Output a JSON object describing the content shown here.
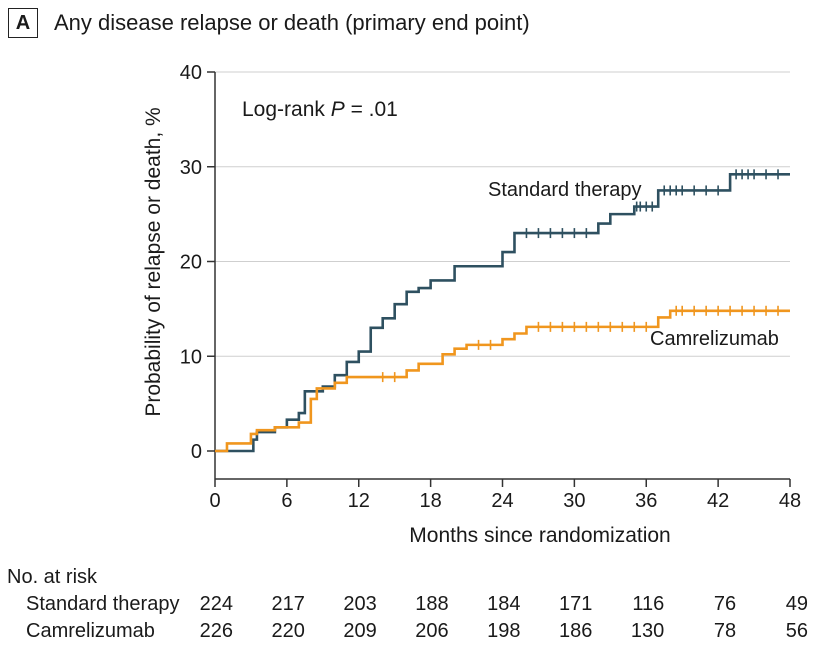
{
  "panel": {
    "letter": "A",
    "title": "Any disease relapse or death (primary end point)"
  },
  "chart_data": {
    "type": "line",
    "subtype": "kaplan-meier",
    "xlabel": "Months since randomization",
    "ylabel": "Probability of relapse or death, %",
    "xlim": [
      0,
      48
    ],
    "ylim": [
      0,
      40
    ],
    "xticks": [
      0,
      6,
      12,
      18,
      24,
      30,
      36,
      42,
      48
    ],
    "yticks": [
      0,
      10,
      20,
      30,
      40
    ],
    "grid": "horizontal",
    "annotation": {
      "prefix": "Log-rank ",
      "p_label": "P",
      "suffix": " = .01"
    },
    "series": [
      {
        "name": "Standard therapy",
        "color": "#2e5060",
        "points": [
          [
            0,
            0
          ],
          [
            3,
            0
          ],
          [
            3.2,
            1.2
          ],
          [
            3.5,
            2
          ],
          [
            5,
            2.5
          ],
          [
            6,
            3.3
          ],
          [
            7,
            4
          ],
          [
            7.5,
            6.3
          ],
          [
            9,
            6.8
          ],
          [
            10,
            8
          ],
          [
            11,
            9.4
          ],
          [
            12,
            10.5
          ],
          [
            13,
            13
          ],
          [
            14,
            14
          ],
          [
            15,
            15.5
          ],
          [
            16,
            16.8
          ],
          [
            17,
            17.2
          ],
          [
            18,
            18
          ],
          [
            20,
            19.5
          ],
          [
            24,
            21
          ],
          [
            25,
            23
          ],
          [
            32,
            24
          ],
          [
            33,
            25
          ],
          [
            35,
            25.8
          ],
          [
            37,
            27.5
          ],
          [
            43,
            29.2
          ],
          [
            48,
            29.2
          ]
        ],
        "censor_x": [
          26,
          27,
          28,
          29,
          30,
          31,
          35.2,
          35.5,
          36,
          36.5,
          37.5,
          38,
          38.5,
          39,
          40,
          41,
          42,
          43.5,
          44,
          44.5,
          45,
          46,
          47
        ]
      },
      {
        "name": "Camrelizumab",
        "color": "#f0961e",
        "points": [
          [
            0,
            0
          ],
          [
            1,
            0.8
          ],
          [
            3,
            1.8
          ],
          [
            3.5,
            2.2
          ],
          [
            5,
            2.5
          ],
          [
            7,
            3
          ],
          [
            8,
            5.5
          ],
          [
            8.5,
            6.6
          ],
          [
            10,
            7.2
          ],
          [
            11,
            7.8
          ],
          [
            16,
            8.5
          ],
          [
            17,
            9.2
          ],
          [
            19,
            10.2
          ],
          [
            20,
            10.8
          ],
          [
            21,
            11.2
          ],
          [
            24,
            11.8
          ],
          [
            25,
            12.4
          ],
          [
            26,
            13.1
          ],
          [
            37,
            14.1
          ],
          [
            38,
            14.8
          ],
          [
            48,
            14.8
          ]
        ],
        "censor_x": [
          14,
          15,
          22,
          23,
          27,
          28,
          29,
          30,
          31,
          32,
          33,
          34,
          35,
          36,
          38.5,
          39,
          40,
          41,
          42,
          43,
          44,
          45,
          46,
          47
        ]
      }
    ],
    "series_labels": [
      {
        "text": "Standard therapy",
        "x": 0.655,
        "y": 0.31
      },
      {
        "text": "Camrelizumab",
        "x": 0.79,
        "y": 0.51
      }
    ],
    "at_risk": {
      "title": "No. at risk",
      "rows": [
        {
          "label": "Standard therapy",
          "values": [
            224,
            217,
            203,
            188,
            184,
            171,
            116,
            76,
            49
          ]
        },
        {
          "label": "Camrelizumab",
          "values": [
            226,
            220,
            209,
            206,
            198,
            186,
            130,
            78,
            56
          ]
        }
      ]
    }
  }
}
